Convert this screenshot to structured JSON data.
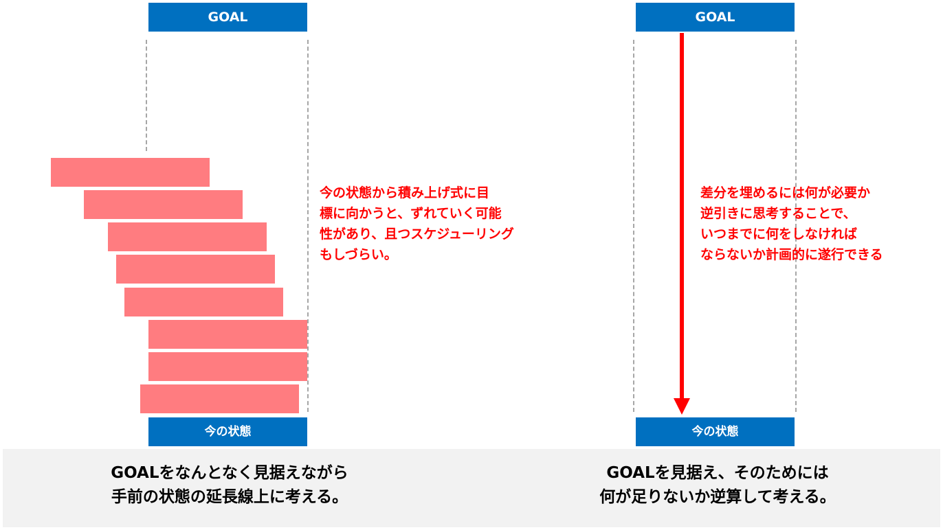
{
  "left": {
    "goal_label": "GOAL",
    "state_label": "今の状態",
    "note": "今の状態から積み上げ式に目\n標に向かうと、ずれていく可能\n性があり、且つスケジューリング\nもしづらい。",
    "caption": "GOALをなんとなく見据えながら\n手前の状態の延長線上に考える。"
  },
  "right": {
    "goal_label": "GOAL",
    "state_label": "今の状態",
    "note": "差分を埋めるには何が必要か\n逆引きに思考することで、\nいつまでに何をしなければ\nならないか計画的に遂行できる",
    "caption": "GOALを見据え、そのためには\n何が足りないか逆算して考える。"
  },
  "colors": {
    "box_blue": "#0070c0",
    "bar_pink": "#ff7c80",
    "note_red": "#ff0000",
    "panel_gray": "#f2f2f2",
    "dash_gray": "#a6a6a6"
  }
}
